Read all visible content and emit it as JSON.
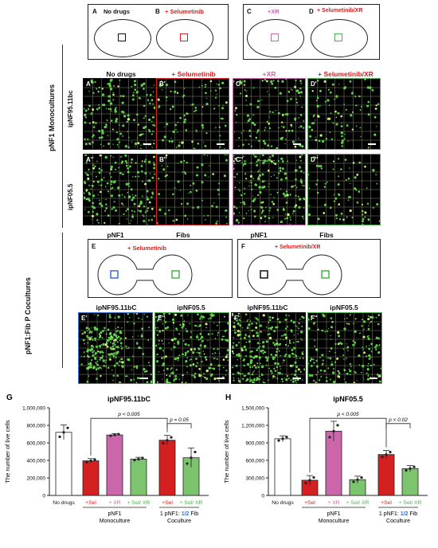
{
  "colors": {
    "red": "#d42020",
    "pink": "#cc66aa",
    "green": "#4caf50",
    "blue": "#3a6fc4",
    "black": "#111111"
  },
  "schemes": {
    "A": {
      "letter": "A",
      "label": "No drugs"
    },
    "B": {
      "letter": "B",
      "label": "+ Selumetinib"
    },
    "C": {
      "letter": "C",
      "label": "+XR"
    },
    "D": {
      "letter": "D",
      "label": "+ Selumetinib/XR"
    }
  },
  "section_labels": {
    "mono": "pNF1 Monocultures",
    "co": "pNF1:Fib P Cocultures",
    "row1": "ipNF95.11bc",
    "row2": "ipNF05.5"
  },
  "column_headers": {
    "a": "No drugs",
    "b": "+ Selumetinib",
    "c": "+XR",
    "d": "+ Selumetinib/XR"
  },
  "panels": {
    "a1": "A'",
    "b1": "B'",
    "c1": "C'",
    "d1": "D'",
    "a2": "A''",
    "b2": "B''",
    "c2": "C''",
    "d2": "D''",
    "e1": "E'",
    "e2": "E''",
    "f1": "F'",
    "f2": "F''"
  },
  "coculture": {
    "E": {
      "letter": "E",
      "left": "pNF1",
      "right": "Fibs",
      "drug": "+ Selumetinib"
    },
    "F": {
      "letter": "F",
      "left": "pNF1",
      "right": "Fibs",
      "drug": "+ Selumetinib/XR"
    },
    "sub": {
      "e1": "ipNF95.11bC",
      "e2": "ipNF05.5",
      "f1": "ipNF95.11bC",
      "f2": "ipNF05.5"
    }
  },
  "chart_data": [
    {
      "panel": "G",
      "type": "bar",
      "title": "ipNF95.11bC",
      "ylabel": "The number of live cells",
      "ylim": [
        0,
        1000000
      ],
      "yticks": [
        "0",
        "200,000",
        "400,000",
        "600,000",
        "800,000",
        "1,000,000"
      ],
      "categories": [
        "No drugs",
        "+Sel",
        "+ XR",
        "+ Sel/ XR",
        "+Sel",
        "+ Sel/ XR"
      ],
      "values": [
        720000,
        395000,
        690000,
        415000,
        630000,
        430000
      ],
      "errors": [
        85000,
        25000,
        15000,
        20000,
        55000,
        110000
      ],
      "bar_colors": [
        "#ffffff",
        "#d42020",
        "#cc66aa",
        "#7cc46e",
        "#d42020",
        "#7cc46e"
      ],
      "groups": [
        {
          "label": "pNF1",
          "sub": "Monoculture"
        },
        {
          "label": "1 pNF1: ",
          "ratio": "1/2",
          "label2": " Fib",
          "sub": "Coculture"
        }
      ],
      "annotations": [
        "p < 0.005",
        "p = 0.05"
      ]
    },
    {
      "panel": "H",
      "type": "bar",
      "title": "ipNF05.5",
      "ylabel": "The number of live cells",
      "ylim": [
        0,
        1500000
      ],
      "yticks": [
        "0",
        "300,000",
        "600,000",
        "900,000",
        "1,200,000",
        "1,500,000"
      ],
      "categories": [
        "No drugs",
        "+Sel",
        "+ XR",
        "+ Sel/ XR",
        "+Sel",
        "+ Sel/ XR"
      ],
      "values": [
        970000,
        260000,
        1100000,
        270000,
        700000,
        460000
      ],
      "errors": [
        50000,
        80000,
        170000,
        60000,
        70000,
        50000
      ],
      "bar_colors": [
        "#ffffff",
        "#d42020",
        "#cc66aa",
        "#7cc46e",
        "#d42020",
        "#7cc46e"
      ],
      "groups": [
        {
          "label": "pNF1",
          "sub": "Monoculture"
        },
        {
          "label": "1 pNF1: ",
          "ratio": "1/2",
          "label2": " Fib",
          "sub": "Coculture"
        }
      ],
      "annotations": [
        "p < 0.005",
        "p < 0.02"
      ]
    }
  ]
}
